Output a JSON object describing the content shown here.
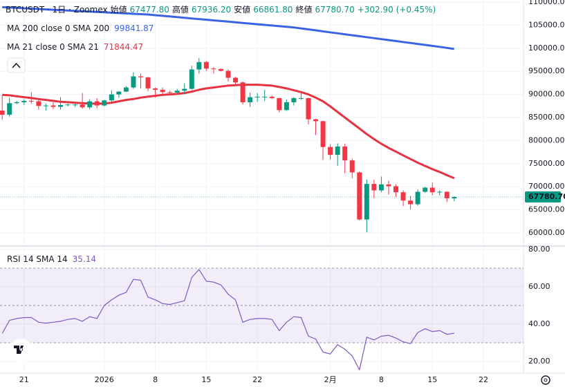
{
  "chart_data": [
    {
      "type": "candlestick",
      "title": "BTCUSDT · 1日 · Zoomex",
      "ohlc_labels": [
        "始値",
        "高値",
        "安値",
        "終値"
      ],
      "ohlc_values": [
        "67477.80",
        "67936.20",
        "66861.80",
        "67780.70"
      ],
      "change": "+302.90 (+0.45%)",
      "up_color": "#089981",
      "down_color": "#f23645",
      "x": [
        0,
        1,
        2,
        3,
        4,
        5,
        6,
        7,
        8,
        9,
        10,
        11,
        12,
        13,
        14,
        15,
        16,
        17,
        18,
        19,
        20,
        21,
        22,
        23,
        24,
        25,
        26,
        27,
        28,
        29,
        30,
        31,
        32,
        33,
        34,
        35,
        36,
        37,
        38,
        39,
        40,
        41,
        42,
        43,
        44,
        45,
        46,
        47,
        48,
        49,
        50,
        51,
        52,
        53,
        54,
        55,
        56,
        57,
        58,
        59,
        60,
        61,
        62
      ],
      "open": [
        86500,
        85600,
        88100,
        88300,
        88600,
        88500,
        87500,
        87600,
        87300,
        87700,
        87800,
        87800,
        87200,
        88500,
        87600,
        88700,
        90000,
        90600,
        91500,
        93900,
        93700,
        91300,
        91000,
        90500,
        90400,
        90800,
        91200,
        95400,
        97000,
        95600,
        95500,
        95100,
        93600,
        92600,
        88300,
        89400,
        89500,
        89500,
        89200,
        86600,
        88300,
        89200,
        89200,
        84600,
        84200,
        78600,
        76900,
        78700,
        75700,
        73100,
        62900,
        70600,
        69200,
        70500,
        70100,
        68800,
        67000,
        66200,
        68900,
        69800,
        68800,
        68900,
        67477.8
      ],
      "high": [
        89800,
        89300,
        88600,
        89000,
        90500,
        88900,
        88000,
        88400,
        89400,
        88000,
        88000,
        90300,
        89000,
        89200,
        88800,
        90900,
        90700,
        91800,
        94800,
        94500,
        93800,
        91500,
        91500,
        90800,
        91200,
        92400,
        96200,
        97900,
        97200,
        95900,
        95600,
        95400,
        93800,
        92800,
        90400,
        90300,
        91000,
        89800,
        89300,
        88900,
        89400,
        90500,
        89300,
        84700,
        84300,
        79200,
        79400,
        79300,
        76100,
        73300,
        71600,
        71500,
        72200,
        71300,
        70500,
        69200,
        68000,
        69400,
        70000,
        70900,
        69200,
        69000,
        67936.2
      ],
      "low": [
        84500,
        85200,
        87900,
        87700,
        88000,
        86700,
        86500,
        86800,
        86700,
        87400,
        87300,
        86900,
        86800,
        87000,
        87400,
        88300,
        89300,
        90500,
        91200,
        91300,
        90700,
        89300,
        89800,
        90200,
        90200,
        90000,
        91000,
        94500,
        95100,
        94500,
        95000,
        92800,
        91900,
        87800,
        87300,
        88400,
        88600,
        89000,
        86100,
        86400,
        87600,
        88800,
        83500,
        81200,
        75800,
        75900,
        74500,
        72900,
        71800,
        62700,
        60100,
        67500,
        68800,
        68300,
        67800,
        65800,
        65100,
        65900,
        68700,
        68100,
        68100,
        66700,
        66861.8
      ],
      "close": [
        85600,
        88100,
        88300,
        88600,
        88500,
        87500,
        87600,
        87300,
        87700,
        87800,
        87800,
        87200,
        88500,
        87600,
        88700,
        90000,
        90600,
        91500,
        93900,
        93700,
        91300,
        91000,
        90500,
        90400,
        90800,
        91200,
        95400,
        97000,
        95600,
        95500,
        95100,
        93600,
        92600,
        88300,
        89400,
        89500,
        89500,
        89200,
        86600,
        88300,
        89200,
        89200,
        84600,
        84200,
        78600,
        76900,
        78700,
        75700,
        73100,
        62900,
        70600,
        69200,
        70500,
        70100,
        68800,
        67000,
        66200,
        68900,
        69800,
        68800,
        68900,
        67500,
        67780.7
      ],
      "series": [
        {
          "name": "MA 200 close 0 SMA 200",
          "legend_value": "99841.87",
          "color": "#3a63e6",
          "values": [
            108900,
            108820,
            108740,
            108660,
            108580,
            108500,
            108420,
            108340,
            108260,
            108180,
            108100,
            108020,
            107940,
            107860,
            107780,
            107700,
            107620,
            107540,
            107460,
            107380,
            107300,
            107160,
            107020,
            106880,
            106740,
            106600,
            106460,
            106320,
            106180,
            106040,
            105900,
            105760,
            105620,
            105480,
            105340,
            105200,
            105060,
            104920,
            104780,
            104640,
            104500,
            104290,
            104080,
            103870,
            103660,
            103450,
            103240,
            103030,
            102820,
            102610,
            102400,
            102190,
            101980,
            101770,
            101560,
            101350,
            101140,
            100930,
            100720,
            100510,
            100300,
            100070,
            99841.87
          ]
        },
        {
          "name": "MA 21 close 0 SMA 21",
          "legend_value": "71844.47",
          "color": "#e8323f",
          "values": [
            89900,
            89800,
            89600,
            89400,
            89200,
            89000,
            88800,
            88600,
            88400,
            88300,
            88200,
            88100,
            88000,
            88000,
            88000,
            88200,
            88500,
            88800,
            89000,
            89300,
            89500,
            89700,
            89900,
            90000,
            90100,
            90300,
            90600,
            91000,
            91300,
            91500,
            91700,
            91900,
            92000,
            92100,
            92100,
            92100,
            92000,
            91900,
            91600,
            91300,
            90900,
            90500,
            90000,
            89300,
            88500,
            87400,
            86200,
            85000,
            83800,
            82600,
            81400,
            80300,
            79300,
            78400,
            77600,
            76800,
            76000,
            75200,
            74500,
            73800,
            73200,
            72500,
            71844.47
          ]
        }
      ],
      "xlim": [
        -0.3,
        71.5
      ],
      "ylim": [
        57300,
        110450
      ],
      "yticks": [
        {
          "value": 110000,
          "label": "110000.00"
        },
        {
          "value": 105000,
          "label": "105000.00"
        },
        {
          "value": 100000,
          "label": "100000.00"
        },
        {
          "value": 95000,
          "label": "95000.00"
        },
        {
          "value": 90000,
          "label": "90000.00"
        },
        {
          "value": 85000,
          "label": "85000.00"
        },
        {
          "value": 80000,
          "label": "80000.00"
        },
        {
          "value": 75000,
          "label": "75000.00"
        },
        {
          "value": 70000,
          "label": "70000.00"
        },
        {
          "value": 65000,
          "label": "65000.00"
        },
        {
          "value": 60000,
          "label": "60000.00"
        }
      ],
      "grid": true
    },
    {
      "type": "line",
      "title": "RSI 14 SMA 14",
      "series": [
        {
          "name": "RSI",
          "legend_value": "35.14",
          "color": "#7e57c2",
          "values": [
            35,
            42,
            43,
            43.5,
            43.5,
            41,
            40.5,
            41,
            41.5,
            42.5,
            43,
            41.5,
            44,
            43,
            50,
            53,
            55.5,
            57,
            64,
            63.5,
            54.5,
            53,
            51,
            50.5,
            51.5,
            52.5,
            65,
            69.3,
            63,
            62.5,
            61,
            56,
            53,
            41,
            42.5,
            43,
            43,
            42.5,
            36.5,
            41,
            44,
            43.5,
            33.5,
            32,
            25,
            24,
            29,
            26.5,
            23,
            15.5,
            33,
            31.5,
            33.5,
            34,
            32.5,
            30.5,
            29.5,
            35.5,
            37.5,
            36,
            36.5,
            34.5,
            35.14
          ]
        }
      ],
      "x": [
        0,
        1,
        2,
        3,
        4,
        5,
        6,
        7,
        8,
        9,
        10,
        11,
        12,
        13,
        14,
        15,
        16,
        17,
        18,
        19,
        20,
        21,
        22,
        23,
        24,
        25,
        26,
        27,
        28,
        29,
        30,
        31,
        32,
        33,
        34,
        35,
        36,
        37,
        38,
        39,
        40,
        41,
        42,
        43,
        44,
        45,
        46,
        47,
        48,
        49,
        50,
        51,
        52,
        53,
        54,
        55,
        56,
        57,
        58,
        59,
        60,
        61,
        62
      ],
      "band": [
        30,
        70
      ],
      "midline": 50,
      "band_color": "#7e57c2",
      "xlim": [
        -0.3,
        71.5
      ],
      "ylim": [
        13.7,
        81.1
      ],
      "yticks": [
        {
          "value": 80,
          "label": "80.00"
        },
        {
          "value": 60,
          "label": "60.00"
        },
        {
          "value": 40,
          "label": "40.00"
        },
        {
          "value": 20,
          "label": "20.00"
        }
      ],
      "xticks": [
        {
          "value": 3,
          "label": "21"
        },
        {
          "value": 14,
          "label": "2026"
        },
        {
          "value": 21,
          "label": "8"
        },
        {
          "value": 28,
          "label": "15"
        },
        {
          "value": 35,
          "label": "22"
        },
        {
          "value": 45,
          "label": "2月"
        },
        {
          "value": 52,
          "label": "8"
        },
        {
          "value": 59,
          "label": "15"
        },
        {
          "value": 66,
          "label": "22"
        }
      ],
      "grid": true
    }
  ]
}
